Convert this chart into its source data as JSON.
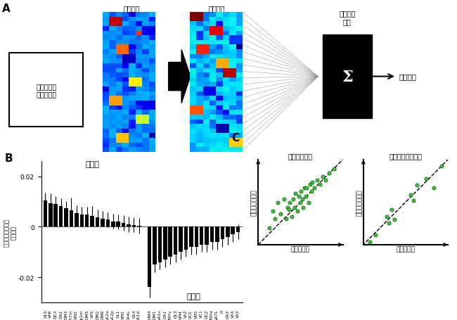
{
  "panel_A": {
    "heatmap1_title": "糸球体の\n匂い応答",
    "heatmap2_title": "応答変換",
    "box_text": "匂い嗜好の\n解読モデル",
    "sigma_label": "重み付け\n加算",
    "output_label": "匂い嗜好"
  },
  "panel_B": {
    "ylabel": "各糸球体の貢献度\n（重み）",
    "avoid_label": "忌避性",
    "attract_label": "誘引性",
    "avoid_labels": [
      "DL5",
      "VA6",
      "DC3",
      "DA2",
      "DM3",
      "VA7m",
      "VM3",
      "Dp1m",
      "DM5",
      "VA5",
      "DM2",
      "DM6",
      "VL2a",
      "VL2p",
      "DL1",
      "VM2",
      "DA4L",
      "DL4",
      "VA1d"
    ],
    "avoid_values": [
      0.0105,
      0.0093,
      0.009,
      0.0082,
      0.0073,
      0.0065,
      0.0055,
      0.005,
      0.0048,
      0.0043,
      0.0038,
      0.0033,
      0.0028,
      0.0022,
      0.002,
      0.0015,
      0.001,
      0.0008,
      0.0004
    ],
    "avoid_errors": [
      0.003,
      0.004,
      0.003,
      0.003,
      0.003,
      0.005,
      0.003,
      0.003,
      0.003,
      0.004,
      0.003,
      0.003,
      0.003,
      0.003,
      0.003,
      0.003,
      0.003,
      0.003,
      0.003
    ],
    "attract_labels": [
      "DM4",
      "DM1",
      "VA1v",
      "DA1",
      "VM7v",
      "DL3",
      "VM4",
      "VA2",
      "VC2",
      "VM1",
      "VC1",
      "DC2",
      "VM7d",
      "VA7L",
      "D",
      "DA3",
      "VA4",
      "VA3"
    ],
    "attract_values": [
      -0.024,
      -0.015,
      -0.014,
      -0.013,
      -0.012,
      -0.011,
      -0.01,
      -0.009,
      -0.008,
      -0.008,
      -0.007,
      -0.007,
      -0.006,
      -0.006,
      -0.005,
      -0.004,
      -0.003,
      -0.002
    ],
    "attract_errors": [
      0.004,
      0.003,
      0.003,
      0.003,
      0.003,
      0.003,
      0.003,
      0.003,
      0.003,
      0.003,
      0.003,
      0.003,
      0.003,
      0.003,
      0.003,
      0.003,
      0.003,
      0.003
    ]
  },
  "panel_C": {
    "scatter1_title": "匂いの混合物",
    "scatter2_title": "濃度の異なる匂い",
    "xlabel": "実際の行動",
    "ylabel": "モデルの予測値",
    "scatter1_x": [
      0.15,
      0.18,
      0.2,
      0.22,
      0.25,
      0.28,
      0.3,
      0.31,
      0.32,
      0.33,
      0.35,
      0.36,
      0.37,
      0.38,
      0.4,
      0.41,
      0.42,
      0.43,
      0.44,
      0.45,
      0.46,
      0.47,
      0.48,
      0.5,
      0.51,
      0.52,
      0.53,
      0.55,
      0.57,
      0.6,
      0.62,
      0.65,
      0.68,
      0.72
    ],
    "scatter1_y": [
      0.2,
      0.35,
      0.28,
      0.42,
      0.32,
      0.45,
      0.28,
      0.38,
      0.36,
      0.42,
      0.3,
      0.45,
      0.38,
      0.5,
      0.35,
      0.48,
      0.42,
      0.52,
      0.45,
      0.38,
      0.55,
      0.48,
      0.55,
      0.42,
      0.58,
      0.52,
      0.6,
      0.55,
      0.62,
      0.58,
      0.65,
      0.62,
      0.68,
      0.72
    ],
    "scatter2_x": [
      0.12,
      0.18,
      0.3,
      0.32,
      0.35,
      0.38,
      0.55,
      0.58,
      0.62,
      0.72,
      0.8,
      0.88
    ],
    "scatter2_y": [
      0.08,
      0.15,
      0.35,
      0.28,
      0.42,
      0.32,
      0.58,
      0.52,
      0.68,
      0.75,
      0.65,
      0.88
    ],
    "dot_color": "#44bb44",
    "dot_edge": "#006600"
  }
}
